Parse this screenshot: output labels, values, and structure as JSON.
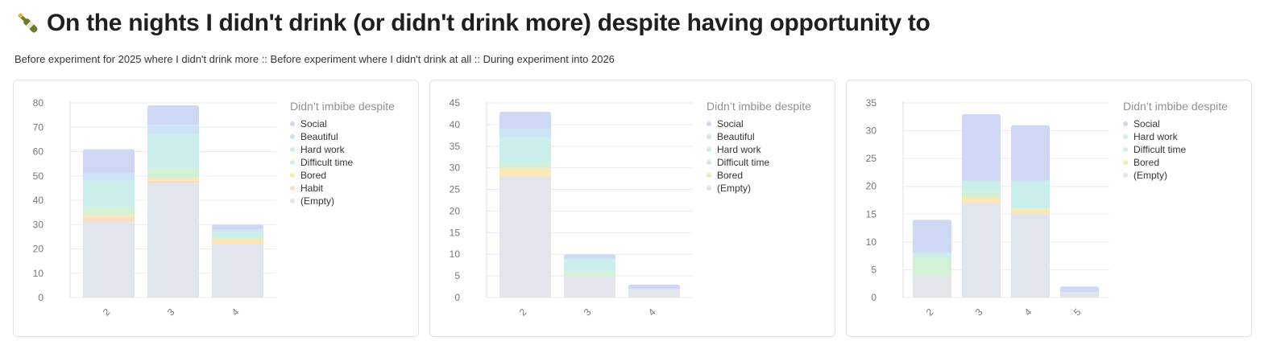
{
  "page": {
    "title": "On the nights I didn't drink (or didn't drink more) despite having opportunity to",
    "title_icon": "champagne-bottle-icon",
    "subtitle": "Before experiment for 2025 where I didn't drink more :: Before experiment where I didn't drink at all :: During experiment into 2026"
  },
  "colors": {
    "Social": "#ced8f5",
    "Beautiful": "#cde3f6",
    "Hard work": "#caefea",
    "Difficult time": "#d4f0d4",
    "Bored": "#fbe6b6",
    "Habit": "#f9dcc4",
    "(Empty)": "#e1e4ea"
  },
  "chart_data": [
    {
      "type": "bar",
      "stacked": true,
      "legend_title": "Didn’t imbibe despite",
      "legend": [
        "Social",
        "Beautiful",
        "Hard work",
        "Difficult time",
        "Bored",
        "Habit",
        "(Empty)"
      ],
      "categories": [
        "2",
        "3",
        "4"
      ],
      "ylim": [
        0,
        80
      ],
      "yticks": [
        0,
        10,
        20,
        30,
        40,
        50,
        60,
        70,
        80
      ],
      "series": [
        {
          "name": "(Empty)",
          "values": [
            31,
            47,
            22
          ]
        },
        {
          "name": "Habit",
          "values": [
            2,
            1,
            0
          ]
        },
        {
          "name": "Bored",
          "values": [
            1,
            1,
            2
          ]
        },
        {
          "name": "Difficult time",
          "values": [
            3,
            4,
            1
          ]
        },
        {
          "name": "Hard work",
          "values": [
            11,
            14,
            2
          ]
        },
        {
          "name": "Beautiful",
          "values": [
            3,
            4,
            1
          ]
        },
        {
          "name": "Social",
          "values": [
            10,
            8,
            2
          ]
        }
      ]
    },
    {
      "type": "bar",
      "stacked": true,
      "legend_title": "Didn’t imbibe despite",
      "legend": [
        "Social",
        "Beautiful",
        "Hard work",
        "Difficult time",
        "Bored",
        "(Empty)"
      ],
      "categories": [
        "2",
        "3",
        "4"
      ],
      "ylim": [
        0,
        45
      ],
      "yticks": [
        0,
        5,
        10,
        15,
        20,
        25,
        30,
        35,
        40,
        45
      ],
      "series": [
        {
          "name": "(Empty)",
          "values": [
            28,
            5,
            2
          ]
        },
        {
          "name": "Bored",
          "values": [
            2,
            0,
            0
          ]
        },
        {
          "name": "Difficult time",
          "values": [
            1,
            1,
            0
          ]
        },
        {
          "name": "Hard work",
          "values": [
            6,
            3,
            0
          ]
        },
        {
          "name": "Beautiful",
          "values": [
            2,
            0,
            0
          ]
        },
        {
          "name": "Social",
          "values": [
            4,
            1,
            1
          ]
        }
      ]
    },
    {
      "type": "bar",
      "stacked": true,
      "legend_title": "Didn’t imbibe despite",
      "legend": [
        "Social",
        "Hard work",
        "Difficult time",
        "Bored",
        "(Empty)"
      ],
      "categories": [
        "2",
        "3",
        "4",
        "5"
      ],
      "ylim": [
        0,
        35
      ],
      "yticks": [
        0,
        5,
        10,
        15,
        20,
        25,
        30,
        35
      ],
      "series": [
        {
          "name": "(Empty)",
          "values": [
            4,
            17,
            15,
            1
          ]
        },
        {
          "name": "Bored",
          "values": [
            0,
            1,
            1,
            0
          ]
        },
        {
          "name": "Difficult time",
          "values": [
            3,
            1,
            0,
            0
          ]
        },
        {
          "name": "Hard work",
          "values": [
            1,
            2,
            5,
            0
          ]
        },
        {
          "name": "Social",
          "values": [
            6,
            12,
            10,
            1
          ]
        }
      ]
    }
  ]
}
